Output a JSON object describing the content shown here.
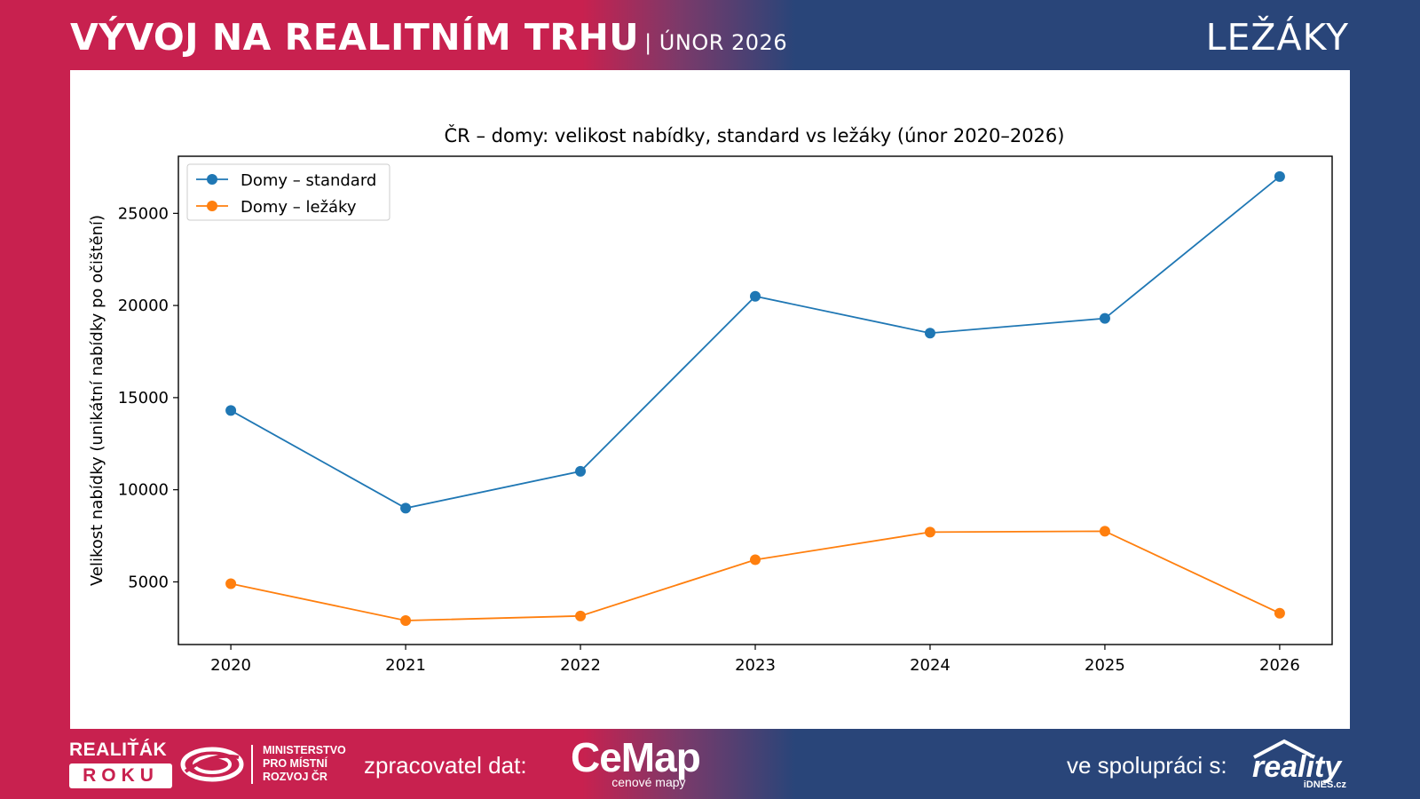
{
  "header": {
    "title": "VÝVOJ NA REALITNÍM TRHU",
    "subtitle": "| ÚNOR 2026",
    "section": "LEŽÁKY"
  },
  "colors": {
    "brand_red": "#c8214f",
    "brand_blue": "#294579",
    "series_standard": "#1f77b4",
    "series_lezaky": "#ff7f0e"
  },
  "chart_data": {
    "type": "line",
    "title": "ČR – domy: velikost nabídky, standard vs ležáky (únor 2020–2026)",
    "xlabel": "",
    "ylabel": "Velikost nabídky (unikátní nabídky po očištění)",
    "x": [
      2020,
      2021,
      2022,
      2023,
      2024,
      2025,
      2026
    ],
    "xlim": [
      2019.7,
      2026.3
    ],
    "ylim": [
      1600,
      28100
    ],
    "yticks": [
      5000,
      10000,
      15000,
      20000,
      25000
    ],
    "grid": false,
    "legend_position": "top-left",
    "series": [
      {
        "name": "Domy – standard",
        "color": "#1f77b4",
        "values": [
          14300,
          9000,
          11000,
          20500,
          18500,
          19300,
          27000
        ]
      },
      {
        "name": "Domy – ležáky",
        "color": "#ff7f0e",
        "values": [
          4900,
          2900,
          3150,
          6200,
          7700,
          7750,
          3300
        ]
      }
    ]
  },
  "footer": {
    "award_line1": "REALIŤÁK",
    "award_line2": "ROKU",
    "ministry_line1": "MINISTERSTVO",
    "ministry_line2": "PRO MÍSTNÍ",
    "ministry_line3": "ROZVOJ ČR",
    "data_processor_label": "zpracovatel dat:",
    "cemap_word": "CeMap",
    "cemap_sub": "cenové mapy",
    "partner_label": "ve spolupráci s:",
    "reality_word": "reality",
    "reality_sub": "iDNES.cz"
  }
}
